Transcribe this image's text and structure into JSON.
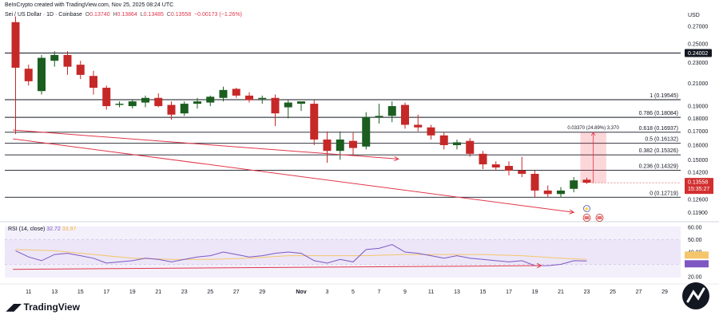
{
  "header": {
    "credit": "BeInCrypto created with TradingView.com, Nov 25, 2025 08:24 UTC",
    "symbol": "Sei / US Dollar · 1D · Coinbase",
    "o_label": "O",
    "o_value": "0.13740",
    "h_label": "H",
    "h_value": "0.13864",
    "l_label": "L",
    "l_value": "0.13485",
    "c_label": "C",
    "c_value": "0.13558",
    "change": "−0.00173 (−1.26%)"
  },
  "currency": "USD",
  "brand": "TradingView",
  "colors": {
    "up": "#1b5e20",
    "down": "#c62828",
    "rsi": "#7e57c2",
    "rsi_ma": "#f5c56b",
    "divergence": "#e0364a",
    "fib": "#131722"
  },
  "chart_data": [
    {
      "type": "candlestick",
      "title": "Sei / US Dollar · 1D · Coinbase",
      "ylabel": "USD",
      "log_scale": true,
      "ylim": [
        0.115,
        0.285
      ],
      "y_ticks": [
        "0.27000",
        "0.25000",
        "0.23000",
        "0.21000",
        "0.19000",
        "0.18000",
        "0.17000",
        "0.16000",
        "0.15000",
        "0.14200",
        "0.12600",
        "0.11900"
      ],
      "x_ticks": [
        "11",
        "13",
        "15",
        "17",
        "19",
        "21",
        "23",
        "25",
        "27",
        "29",
        "Nov",
        "3",
        "5",
        "7",
        "9",
        "11",
        "13",
        "15",
        "17",
        "19",
        "21",
        "23",
        "25",
        "27",
        "29"
      ],
      "x_tick_days": [
        10,
        12,
        14,
        16,
        18,
        20,
        22,
        24,
        26,
        28,
        31,
        33,
        35,
        37,
        39,
        41,
        43,
        45,
        47,
        49,
        51,
        53,
        55,
        57,
        59
      ],
      "candles": [
        {
          "d": 9,
          "o": 0.275,
          "h": 0.282,
          "l": 0.168,
          "c": 0.225
        },
        {
          "d": 10,
          "o": 0.224,
          "h": 0.228,
          "l": 0.208,
          "c": 0.212
        },
        {
          "d": 11,
          "o": 0.203,
          "h": 0.238,
          "l": 0.2,
          "c": 0.235
        },
        {
          "d": 12,
          "o": 0.232,
          "h": 0.242,
          "l": 0.226,
          "c": 0.238
        },
        {
          "d": 13,
          "o": 0.238,
          "h": 0.242,
          "l": 0.218,
          "c": 0.226
        },
        {
          "d": 14,
          "o": 0.228,
          "h": 0.232,
          "l": 0.214,
          "c": 0.218
        },
        {
          "d": 15,
          "o": 0.217,
          "h": 0.222,
          "l": 0.2,
          "c": 0.206
        },
        {
          "d": 16,
          "o": 0.206,
          "h": 0.208,
          "l": 0.187,
          "c": 0.19
        },
        {
          "d": 17,
          "o": 0.191,
          "h": 0.194,
          "l": 0.189,
          "c": 0.192
        },
        {
          "d": 18,
          "o": 0.19,
          "h": 0.196,
          "l": 0.188,
          "c": 0.194
        },
        {
          "d": 19,
          "o": 0.193,
          "h": 0.199,
          "l": 0.189,
          "c": 0.197
        },
        {
          "d": 20,
          "o": 0.197,
          "h": 0.201,
          "l": 0.189,
          "c": 0.19
        },
        {
          "d": 21,
          "o": 0.191,
          "h": 0.194,
          "l": 0.179,
          "c": 0.183
        },
        {
          "d": 22,
          "o": 0.184,
          "h": 0.194,
          "l": 0.182,
          "c": 0.192
        },
        {
          "d": 23,
          "o": 0.192,
          "h": 0.197,
          "l": 0.188,
          "c": 0.194
        },
        {
          "d": 24,
          "o": 0.193,
          "h": 0.199,
          "l": 0.19,
          "c": 0.198
        },
        {
          "d": 25,
          "o": 0.197,
          "h": 0.207,
          "l": 0.194,
          "c": 0.204
        },
        {
          "d": 26,
          "o": 0.205,
          "h": 0.206,
          "l": 0.197,
          "c": 0.199
        },
        {
          "d": 27,
          "o": 0.199,
          "h": 0.202,
          "l": 0.193,
          "c": 0.195
        },
        {
          "d": 28,
          "o": 0.196,
          "h": 0.199,
          "l": 0.192,
          "c": 0.197
        },
        {
          "d": 29,
          "o": 0.197,
          "h": 0.2,
          "l": 0.174,
          "c": 0.184
        },
        {
          "d": 30,
          "o": 0.189,
          "h": 0.195,
          "l": 0.18,
          "c": 0.193
        },
        {
          "d": 31,
          "o": 0.192,
          "h": 0.193,
          "l": 0.186,
          "c": 0.194
        },
        {
          "d": 32,
          "o": 0.192,
          "h": 0.195,
          "l": 0.16,
          "c": 0.164
        },
        {
          "d": 33,
          "o": 0.164,
          "h": 0.17,
          "l": 0.148,
          "c": 0.156
        },
        {
          "d": 34,
          "o": 0.156,
          "h": 0.17,
          "l": 0.15,
          "c": 0.164
        },
        {
          "d": 35,
          "o": 0.163,
          "h": 0.169,
          "l": 0.153,
          "c": 0.158
        },
        {
          "d": 36,
          "o": 0.159,
          "h": 0.185,
          "l": 0.157,
          "c": 0.181
        },
        {
          "d": 37,
          "o": 0.181,
          "h": 0.192,
          "l": 0.176,
          "c": 0.182
        },
        {
          "d": 38,
          "o": 0.182,
          "h": 0.194,
          "l": 0.177,
          "c": 0.19
        },
        {
          "d": 39,
          "o": 0.191,
          "h": 0.193,
          "l": 0.172,
          "c": 0.175
        },
        {
          "d": 40,
          "o": 0.175,
          "h": 0.183,
          "l": 0.17,
          "c": 0.173
        },
        {
          "d": 41,
          "o": 0.173,
          "h": 0.175,
          "l": 0.164,
          "c": 0.167
        },
        {
          "d": 42,
          "o": 0.167,
          "h": 0.169,
          "l": 0.157,
          "c": 0.16
        },
        {
          "d": 43,
          "o": 0.16,
          "h": 0.164,
          "l": 0.157,
          "c": 0.162
        },
        {
          "d": 44,
          "o": 0.163,
          "h": 0.165,
          "l": 0.152,
          "c": 0.154
        },
        {
          "d": 45,
          "o": 0.154,
          "h": 0.156,
          "l": 0.144,
          "c": 0.147
        },
        {
          "d": 46,
          "o": 0.147,
          "h": 0.149,
          "l": 0.143,
          "c": 0.145
        },
        {
          "d": 47,
          "o": 0.146,
          "h": 0.149,
          "l": 0.14,
          "c": 0.143
        },
        {
          "d": 48,
          "o": 0.143,
          "h": 0.152,
          "l": 0.139,
          "c": 0.141
        },
        {
          "d": 49,
          "o": 0.141,
          "h": 0.143,
          "l": 0.127,
          "c": 0.131
        },
        {
          "d": 50,
          "o": 0.131,
          "h": 0.134,
          "l": 0.127,
          "c": 0.129
        },
        {
          "d": 51,
          "o": 0.129,
          "h": 0.133,
          "l": 0.127,
          "c": 0.131
        },
        {
          "d": 52,
          "o": 0.132,
          "h": 0.139,
          "l": 0.13,
          "c": 0.137
        },
        {
          "d": 53,
          "o": 0.1374,
          "h": 0.13864,
          "l": 0.13485,
          "c": 0.13558
        }
      ],
      "horizontal_levels": [
        {
          "value": 0.24002,
          "label": "0.24002"
        }
      ],
      "fib_levels": [
        {
          "value": 0.19545,
          "label": "1 (0.19545)"
        },
        {
          "value": 0.18084,
          "label": "0.786 (0.18084)"
        },
        {
          "value": 0.16937,
          "label": "0.618 (0.16937)"
        },
        {
          "value": 0.16132,
          "label": "0.5 (0.16132)"
        },
        {
          "value": 0.15326,
          "label": "0.382 (0.15326)"
        },
        {
          "value": 0.14329,
          "label": "0.236 (0.14329)"
        },
        {
          "value": 0.12719,
          "label": "0 (0.12719)"
        }
      ],
      "measure": {
        "from_day": 52.5,
        "to_day": 54.5,
        "low": 0.1355,
        "high": 0.1692,
        "label": "0.03370 (24.89%) 3,370"
      },
      "trendlines": [
        {
          "from": [
            8.8,
            0.171
          ],
          "to": [
            38.5,
            0.1505
          ]
        },
        {
          "from": [
            8.8,
            0.1645
          ],
          "to": [
            52,
            0.119
          ]
        }
      ],
      "last_price": {
        "value": 0.13558,
        "label": "0.13558",
        "countdown": "15:35:27"
      }
    },
    {
      "type": "line",
      "title": "RSI (14, close)",
      "ylim": [
        15,
        65
      ],
      "y_ticks": [
        "60.00",
        "50.00",
        "40.00",
        "30.00",
        "20.00"
      ],
      "series": [
        {
          "name": "RSI",
          "values": [
            [
              9,
              41
            ],
            [
              10,
              36
            ],
            [
              11,
              33
            ],
            [
              12,
              38
            ],
            [
              13,
              39
            ],
            [
              14,
              37
            ],
            [
              15,
              35
            ],
            [
              16,
              31
            ],
            [
              17,
              32
            ],
            [
              18,
              33
            ],
            [
              19,
              35
            ],
            [
              20,
              34
            ],
            [
              21,
              32
            ],
            [
              22,
              34
            ],
            [
              23,
              36
            ],
            [
              24,
              37
            ],
            [
              25,
              40
            ],
            [
              26,
              38
            ],
            [
              27,
              36
            ],
            [
              28,
              37
            ],
            [
              29,
              39
            ],
            [
              30,
              40
            ],
            [
              31,
              39
            ],
            [
              32,
              33
            ],
            [
              33,
              31
            ],
            [
              34,
              34
            ],
            [
              35,
              32
            ],
            [
              36,
              42
            ],
            [
              37,
              43
            ],
            [
              38,
              46
            ],
            [
              39,
              40
            ],
            [
              40,
              39
            ],
            [
              41,
              37
            ],
            [
              42,
              35
            ],
            [
              43,
              37
            ],
            [
              44,
              35
            ],
            [
              45,
              34
            ],
            [
              46,
              33
            ],
            [
              47,
              32
            ],
            [
              48,
              33
            ],
            [
              49,
              29
            ],
            [
              50,
              29
            ],
            [
              51,
              30
            ],
            [
              52,
              33
            ],
            [
              53,
              32.72
            ]
          ]
        },
        {
          "name": "MA",
          "values": [
            [
              9,
              42
            ],
            [
              12,
              41
            ],
            [
              15,
              38
            ],
            [
              18,
              35
            ],
            [
              21,
              34
            ],
            [
              24,
              34
            ],
            [
              27,
              35
            ],
            [
              30,
              37
            ],
            [
              33,
              37
            ],
            [
              36,
              37
            ],
            [
              39,
              38
            ],
            [
              42,
              38
            ],
            [
              45,
              38
            ],
            [
              48,
              37
            ],
            [
              51,
              35
            ],
            [
              53,
              33.97
            ]
          ]
        }
      ],
      "rsi_value": "32.72",
      "ma_value": "33.97",
      "divergence_line": {
        "from": [
          8.8,
          26
        ],
        "to": [
          49.5,
          29
        ]
      }
    }
  ]
}
